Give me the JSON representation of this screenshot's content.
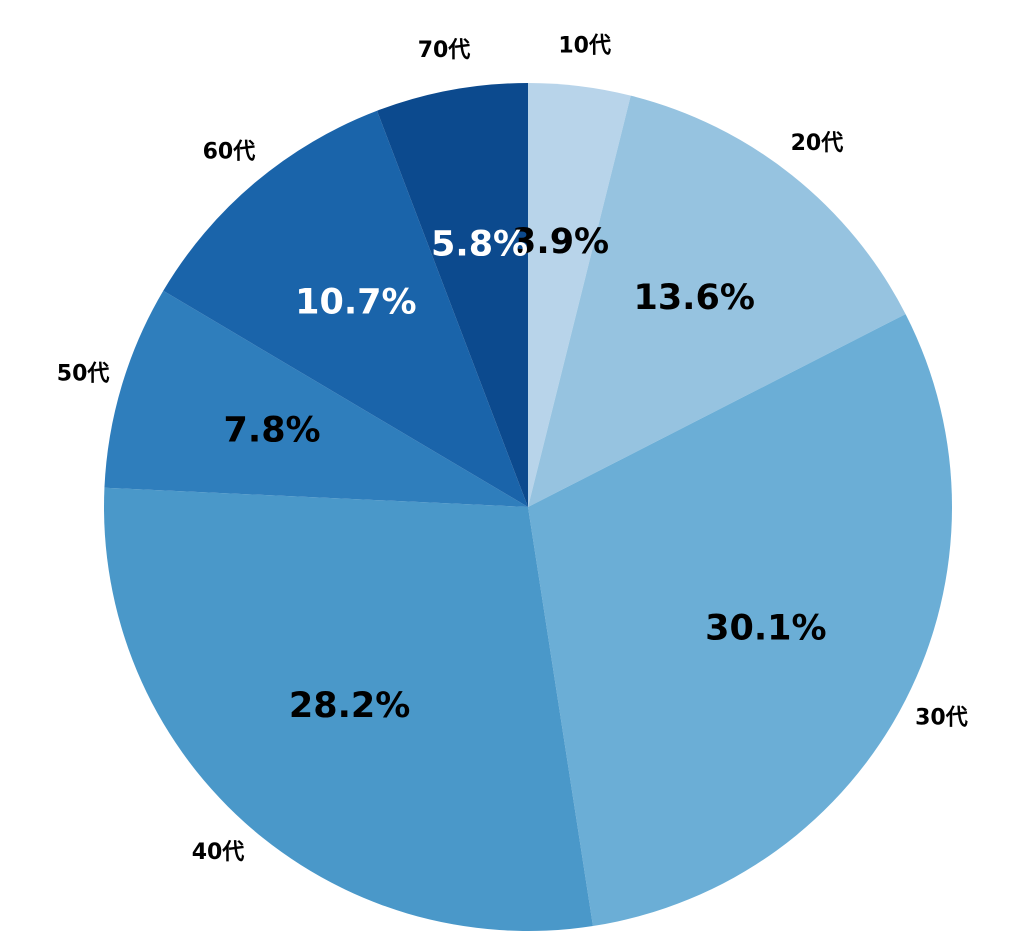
{
  "chart_data": {
    "type": "pie",
    "start": "12 o'clock",
    "direction": "clockwise",
    "slices": [
      {
        "category": "10代",
        "value": 3.9,
        "label": "3.9%",
        "color": "#b8d4ea",
        "label_color": "#000000"
      },
      {
        "category": "20代",
        "value": 13.6,
        "label": "13.6%",
        "color": "#96c3e0",
        "label_color": "#000000"
      },
      {
        "category": "30代",
        "value": 30.1,
        "label": "30.1%",
        "color": "#6baed6",
        "label_color": "#000000"
      },
      {
        "category": "40代",
        "value": 28.2,
        "label": "28.2%",
        "color": "#4a98c9",
        "label_color": "#000000"
      },
      {
        "category": "50代",
        "value": 7.8,
        "label": "7.8%",
        "color": "#2f7ebc",
        "label_color": "#000000"
      },
      {
        "category": "60代",
        "value": 10.7,
        "label": "10.7%",
        "color": "#1a64aa",
        "label_color": "#ffffff"
      },
      {
        "category": "70代",
        "value": 5.8,
        "label": "5.8%",
        "color": "#0c4a8e",
        "label_color": "#ffffff"
      }
    ]
  }
}
